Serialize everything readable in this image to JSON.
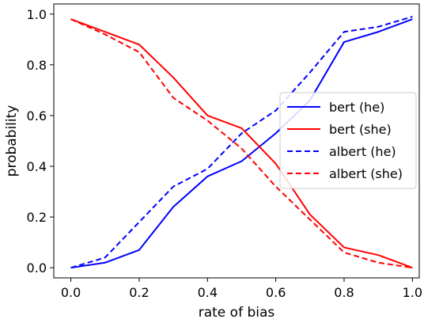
{
  "chart_data": {
    "type": "line",
    "xlabel": "rate of bias",
    "ylabel": "probability",
    "xlim": [
      -0.05,
      1.02
    ],
    "ylim": [
      -0.04,
      1.04
    ],
    "xticks": [
      0.0,
      0.2,
      0.4,
      0.6,
      0.8,
      1.0
    ],
    "xtick_labels": [
      "0.0",
      "0.2",
      "0.4",
      "0.6",
      "0.8",
      "1.0"
    ],
    "yticks": [
      0.0,
      0.2,
      0.4,
      0.6,
      0.8,
      1.0
    ],
    "ytick_labels": [
      "0.0",
      "0.2",
      "0.4",
      "0.6",
      "0.8",
      "1.0"
    ],
    "grid": false,
    "legend_position": "center-right",
    "x": [
      0.0,
      0.1,
      0.2,
      0.3,
      0.4,
      0.5,
      0.6,
      0.7,
      0.8,
      0.9,
      1.0
    ],
    "series": [
      {
        "name": "bert (he)",
        "color": "#0000ff",
        "style": "solid",
        "values": [
          0.0,
          0.02,
          0.07,
          0.24,
          0.36,
          0.42,
          0.53,
          0.66,
          0.89,
          0.93,
          0.98
        ]
      },
      {
        "name": "bert (she)",
        "color": "#ff0000",
        "style": "solid",
        "values": [
          0.98,
          0.93,
          0.88,
          0.75,
          0.6,
          0.55,
          0.41,
          0.21,
          0.08,
          0.05,
          0.0
        ]
      },
      {
        "name": "albert (he)",
        "color": "#0000ff",
        "style": "dashed",
        "values": [
          0.0,
          0.04,
          0.18,
          0.32,
          0.39,
          0.53,
          0.62,
          0.77,
          0.93,
          0.95,
          0.99
        ]
      },
      {
        "name": "albert (she)",
        "color": "#ff0000",
        "style": "dashed",
        "values": [
          0.98,
          0.92,
          0.85,
          0.67,
          0.58,
          0.47,
          0.32,
          0.19,
          0.06,
          0.02,
          0.0
        ]
      }
    ]
  }
}
